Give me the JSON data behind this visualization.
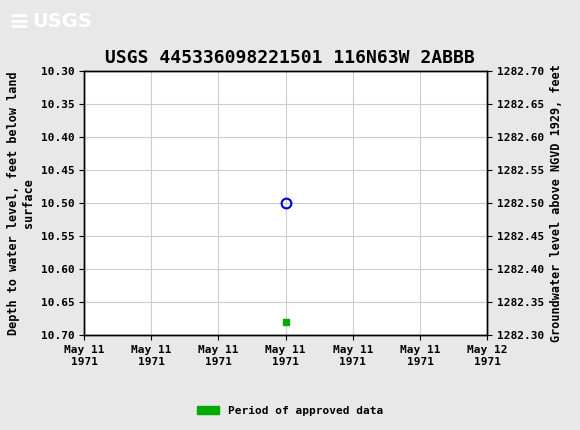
{
  "title": "USGS 445336098221501 116N63W 2ABBB",
  "header_color": "#1a6b3c",
  "ylabel_left": "Depth to water level, feet below land\nsurface",
  "ylabel_right": "Groundwater level above NGVD 1929, feet",
  "ylim_left": [
    10.7,
    10.3
  ],
  "ylim_right": [
    1282.3,
    1282.7
  ],
  "yticks_left": [
    10.3,
    10.35,
    10.4,
    10.45,
    10.5,
    10.55,
    10.6,
    10.65,
    10.7
  ],
  "yticks_right": [
    1282.3,
    1282.35,
    1282.4,
    1282.45,
    1282.5,
    1282.55,
    1282.6,
    1282.65,
    1282.7
  ],
  "data_x": [
    3.0
  ],
  "data_y": [
    10.5
  ],
  "data_marker_color": "#0000cc",
  "approved_x": [
    3.0
  ],
  "approved_y": [
    10.68
  ],
  "approved_color": "#00aa00",
  "background_color": "#e8e8e8",
  "plot_bg_color": "#ffffff",
  "grid_color": "#cccccc",
  "legend_label": "Period of approved data",
  "xlim": [
    0,
    6
  ],
  "xtick_pos": [
    0,
    1,
    2,
    3,
    4,
    5,
    6
  ],
  "xtick_labels": [
    "May 11\n1971",
    "May 11\n1971",
    "May 11\n1971",
    "May 11\n1971",
    "May 11\n1971",
    "May 11\n1971",
    "May 12\n1971"
  ],
  "title_fontsize": 13,
  "axis_fontsize": 8.5,
  "tick_fontsize": 8
}
